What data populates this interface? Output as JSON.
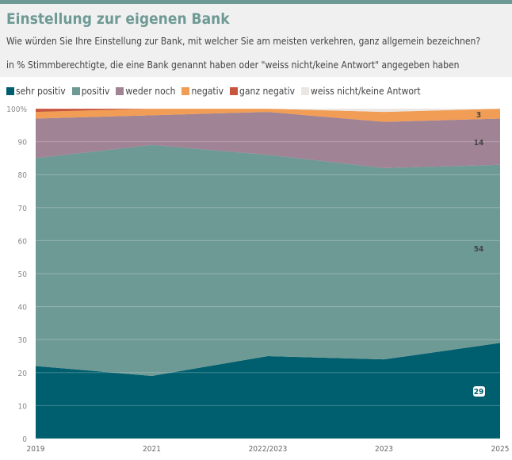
{
  "header": {
    "title": "Einstellung zur eigenen Bank",
    "question": "Wie würden Sie Ihre Einstellung zur Bank, mit welcher Sie am meisten verkehren, ganz allgemein bezeichnen?",
    "note": "in % Stimmberechtigte, die eine Bank genannt haben oder \"weiss nicht/keine Antwort\" angegeben haben"
  },
  "chart_data": {
    "type": "area",
    "stacked": true,
    "categories": [
      "2019",
      "2021",
      "2022/2023",
      "2023",
      "2025"
    ],
    "ylim": [
      0,
      100
    ],
    "yticks": [
      "0",
      "10",
      "20",
      "30",
      "40",
      "50",
      "60",
      "70",
      "80",
      "90",
      "100%"
    ],
    "grid": true,
    "legend": "top",
    "series": [
      {
        "name": "sehr positiv",
        "color": "#005f6e",
        "values": [
          22,
          19,
          25,
          24,
          29
        ]
      },
      {
        "name": "positiv",
        "color": "#6e9a96",
        "values": [
          63,
          70,
          61,
          58,
          54
        ]
      },
      {
        "name": "weder noch",
        "color": "#a08394",
        "values": [
          12,
          9,
          13,
          14,
          14
        ]
      },
      {
        "name": "negativ",
        "color": "#f29d55",
        "values": [
          2,
          2,
          1,
          3,
          3
        ]
      },
      {
        "name": "ganz negativ",
        "color": "#c8553d",
        "values": [
          1,
          0,
          0,
          0,
          0
        ]
      },
      {
        "name": "weiss nicht/keine Antwort",
        "color": "#ece6e2",
        "values": [
          0,
          0,
          0,
          1,
          0
        ]
      }
    ],
    "data_labels": [
      "29",
      "54",
      "14",
      "3"
    ]
  }
}
